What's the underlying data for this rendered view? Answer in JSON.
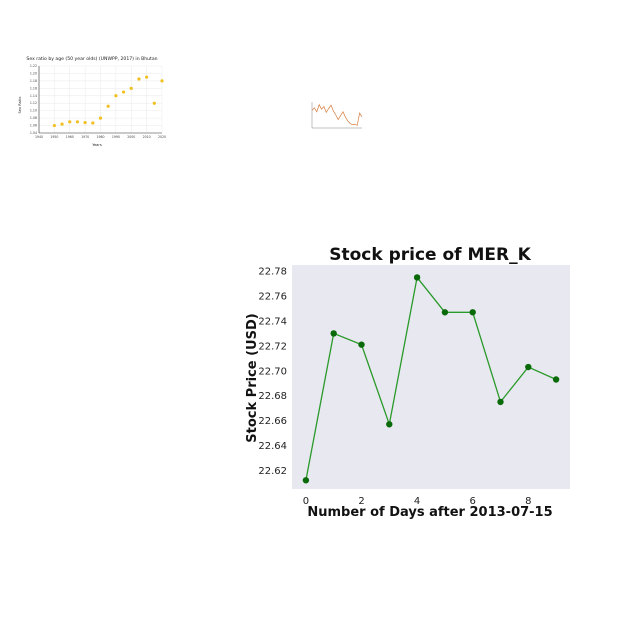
{
  "colors": {
    "stock_line": "#2a9a2a",
    "stock_marker": "#0a6a0a",
    "stock_bg": "#e8e8f0",
    "scatter_marker": "#f0c020",
    "small_line": "#d87a3a"
  },
  "chart_data": [
    {
      "type": "scatter",
      "title": "Sex ratio by age (50 year olds) (UNWPP, 2017) in Bhutan",
      "xlabel": "Years",
      "ylabel": "Sex Ratio",
      "xlim": [
        1940,
        2020
      ],
      "ylim": [
        1.04,
        1.22
      ],
      "grid": true,
      "xticks": [
        "1940",
        "1950",
        "1960",
        "1970",
        "1980",
        "1990",
        "2000",
        "2010",
        "2020"
      ],
      "yticks": [
        "1.04",
        "1.06",
        "1.08",
        "1.10",
        "1.12",
        "1.14",
        "1.16",
        "1.18",
        "1.20",
        "1.22"
      ],
      "x": [
        1950,
        1955,
        1960,
        1965,
        1970,
        1975,
        1980,
        1985,
        1990,
        1995,
        2000,
        2005,
        2010,
        2015,
        2020
      ],
      "y": [
        1.06,
        1.064,
        1.07,
        1.07,
        1.068,
        1.067,
        1.08,
        1.112,
        1.14,
        1.15,
        1.16,
        1.185,
        1.19,
        1.12,
        1.18
      ]
    },
    {
      "type": "line",
      "title": "",
      "xlabel": "",
      "ylabel": "",
      "x": [
        0,
        1,
        2,
        3,
        4,
        5,
        6,
        7,
        8,
        9,
        10,
        11,
        12,
        13,
        14,
        15,
        16,
        17,
        18,
        19,
        20,
        21
      ],
      "y": [
        5.2,
        5.6,
        5.0,
        6.1,
        5.4,
        5.8,
        4.9,
        5.5,
        6.0,
        5.1,
        4.5,
        3.8,
        4.4,
        5.0,
        4.2,
        3.6,
        3.2,
        3.0,
        3.1,
        2.9,
        4.8,
        4.2
      ]
    },
    {
      "type": "line",
      "title": "Stock price of MER_K",
      "xlabel": "Number of Days after 2013-07-15",
      "ylabel": "Stock Price (USD)",
      "xlim": [
        -0.5,
        9.5
      ],
      "ylim": [
        22.605,
        22.785
      ],
      "xticks": [
        "0",
        "2",
        "4",
        "6",
        "8"
      ],
      "yticks": [
        "22.62",
        "22.64",
        "22.66",
        "22.68",
        "22.70",
        "22.72",
        "22.74",
        "22.76",
        "22.78"
      ],
      "grid": false,
      "x": [
        0,
        1,
        2,
        3,
        4,
        5,
        6,
        7,
        8,
        9
      ],
      "y": [
        22.612,
        22.73,
        22.721,
        22.657,
        22.775,
        22.747,
        22.747,
        22.675,
        22.703,
        22.693
      ]
    }
  ]
}
